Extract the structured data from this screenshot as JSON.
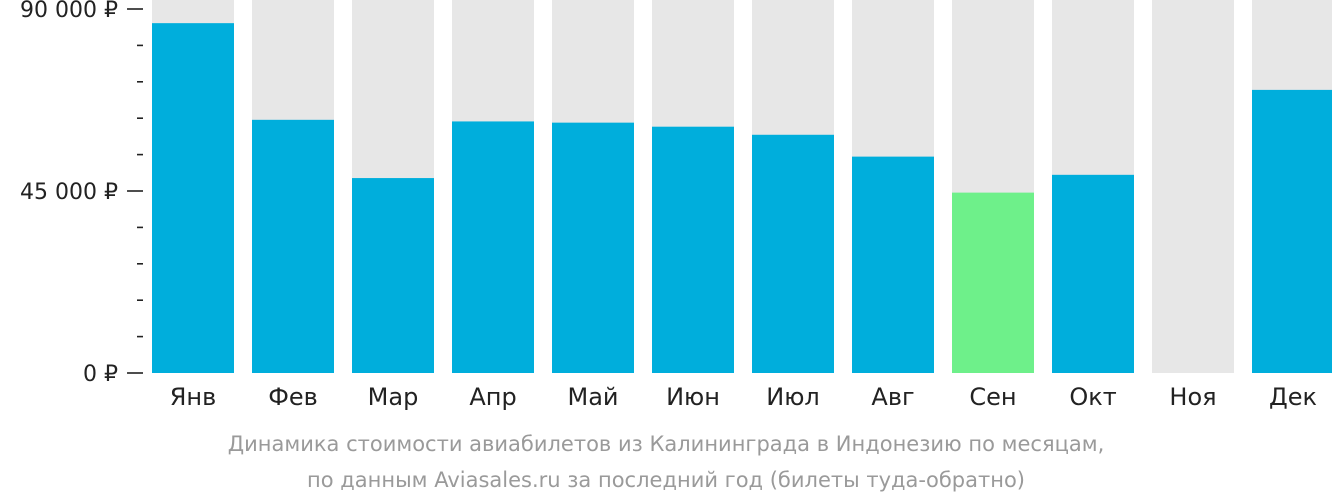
{
  "chart_data": {
    "type": "bar",
    "categories": [
      "Янв",
      "Фев",
      "Мар",
      "Апр",
      "Май",
      "Июн",
      "Июл",
      "Авг",
      "Сен",
      "Окт",
      "Ноя",
      "Дек"
    ],
    "values": [
      86500,
      62600,
      48200,
      62200,
      61900,
      60900,
      58900,
      53500,
      44600,
      49000,
      null,
      70000
    ],
    "ylim": [
      0,
      90000
    ],
    "y_ticks": [
      "0 ₽",
      "45 000 ₽",
      "90 000 ₽"
    ],
    "y_tick_values": [
      0,
      45000,
      90000
    ],
    "minor_ticks_between_labels": 4,
    "highlight_index": 8,
    "grid": false,
    "colors": {
      "bar": "#00aedc",
      "highlight": "#6ef08a",
      "background_column": "#e7e7e7",
      "axis": "#222222",
      "caption": "#9a9a9a"
    }
  },
  "caption": {
    "line1": "Динамика стоимости авиабилетов из Калининграда в Индонезию по месяцам,",
    "line2": "по данным Aviasales.ru за последний год (билеты туда-обратно)"
  }
}
